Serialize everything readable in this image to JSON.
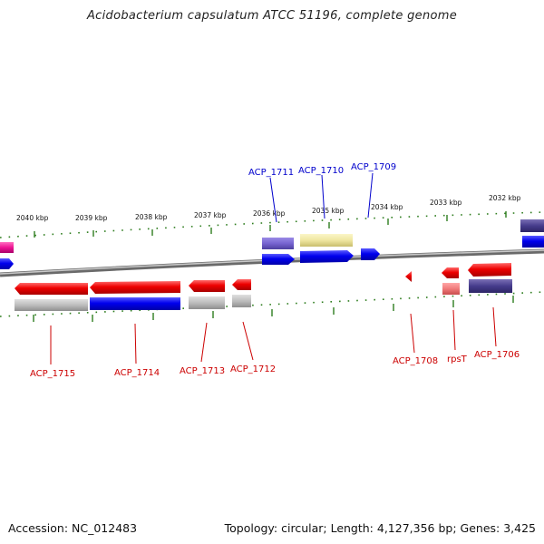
{
  "title": "Acidobacterium capsulatum ATCC 51196, complete genome",
  "footer": {
    "accession": "Accession: NC_012483",
    "topology": "Topology: circular; Length: 4,127,356 bp; Genes: 3,425"
  },
  "colors": {
    "forward_cds": "#0000ee",
    "reverse_cds": "#ee0000",
    "tick": "#2e7d1e",
    "backbone": "#777777",
    "forward_label": "#0000cc",
    "reverse_label": "#cc0000"
  },
  "kbp_labels": [
    "2040 kbp",
    "2039 kbp",
    "2038 kbp",
    "2037 kbp",
    "2036 kbp",
    "2035 kbp",
    "2034 kbp",
    "2033 kbp",
    "2032 kbp"
  ],
  "forward_labels": [
    "ACP_1711",
    "ACP_1710",
    "ACP_1709"
  ],
  "reverse_labels": [
    "ACP_1715",
    "ACP_1714",
    "ACP_1713",
    "ACP_1712",
    "ACP_1708",
    "rpsT",
    "ACP_1706"
  ]
}
